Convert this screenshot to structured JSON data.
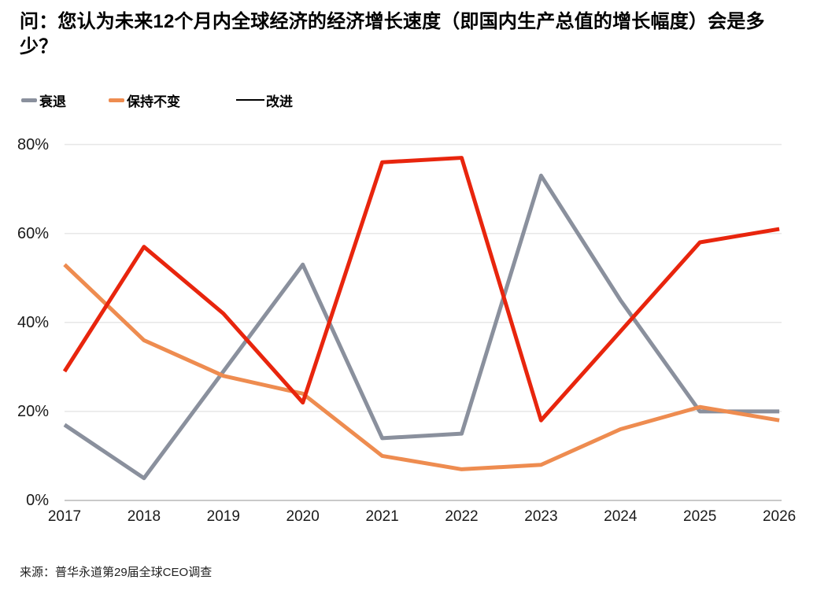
{
  "title": "问：您认为未来12个月内全球经济的经济增长速度（即国内生产总值的增长幅度）会是多少？",
  "source": "来源：普华永道第29届全球CEO调查",
  "colors": {
    "decline_gray": "#8A909D",
    "same_orange": "#EE8C50",
    "improve_red": "#E8250D",
    "legend_improve_marker": "#000000",
    "gridline": "#E7E7E7",
    "baseline": "#C9C9C9",
    "tick_text": "#1a1a1a"
  },
  "legend": {
    "items": [
      {
        "label": "衰退",
        "color": "#8A909D",
        "style": "thick"
      },
      {
        "label": "保持不变",
        "color": "#EE8C50",
        "style": "thick"
      },
      {
        "label": "改进",
        "color": "#000000",
        "style": "thin"
      }
    ]
  },
  "chart_data": {
    "type": "line",
    "x": [
      "2017",
      "2018",
      "2019",
      "2020",
      "2021",
      "2022",
      "2023",
      "2024",
      "2025",
      "2026"
    ],
    "series": [
      {
        "name": "衰退",
        "color": "#8A909D",
        "values": [
          17,
          5,
          29,
          53,
          14,
          15,
          73,
          45,
          20,
          20
        ]
      },
      {
        "name": "保持不变",
        "color": "#EE8C50",
        "values": [
          53,
          36,
          28,
          24,
          10,
          7,
          8,
          16,
          21,
          18
        ]
      },
      {
        "name": "改进",
        "color": "#E8250D",
        "values": [
          29,
          57,
          42,
          22,
          76,
          77,
          18,
          38,
          58,
          61
        ]
      }
    ],
    "title": "问：您认为未来12个月内全球经济的经济增长速度（即国内生产总值的增长幅度）会是多少？",
    "xlabel": "",
    "ylabel": "",
    "y_ticks": [
      "80%",
      "60%",
      "40%",
      "20%",
      "0%"
    ],
    "y_tick_values": [
      80,
      60,
      40,
      20,
      0
    ],
    "ylim": [
      0,
      85
    ],
    "grid": "horizontal",
    "legend_position": "top-left"
  }
}
